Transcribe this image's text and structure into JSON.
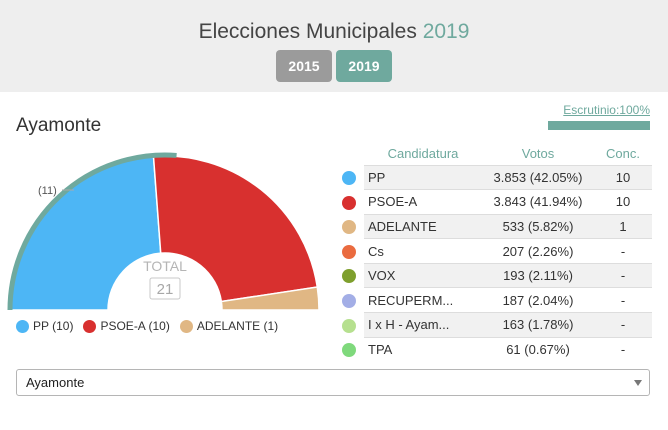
{
  "header": {
    "title_text": "Elecciones Municipales",
    "title_year": "2019",
    "years": [
      {
        "label": "2015",
        "active": false
      },
      {
        "label": "2019",
        "active": true
      }
    ]
  },
  "municipality": "Ayamonte",
  "scrutiny": {
    "label": "Escrutinio:100%",
    "fraction": 1.0
  },
  "chart_data": {
    "type": "pie",
    "shape": "semicircle",
    "total_label": "TOTAL",
    "total_seats": "21",
    "majority_label": "(11)",
    "slices": [
      {
        "name": "PP",
        "seats": 10,
        "color": "#4db6f5"
      },
      {
        "name": "PSOE-A",
        "seats": 10,
        "color": "#d8302f"
      },
      {
        "name": "ADELANTE",
        "seats": 1,
        "color": "#e0b784"
      }
    ]
  },
  "legend": [
    {
      "label": "PP (10)",
      "color": "#4db6f5"
    },
    {
      "label": "PSOE-A (10)",
      "color": "#d8302f"
    },
    {
      "label": "ADELANTE (1)",
      "color": "#e0b784"
    }
  ],
  "table": {
    "headers": {
      "party": "Candidatura",
      "votes": "Votos",
      "seats": "Conc."
    },
    "rows": [
      {
        "name": "PP",
        "votes": "3.853 (42.05%)",
        "seats": "10",
        "color": "#4db6f5"
      },
      {
        "name": "PSOE-A",
        "votes": "3.843 (41.94%)",
        "seats": "10",
        "color": "#d8302f"
      },
      {
        "name": "ADELANTE",
        "votes": "533 (5.82%)",
        "seats": "1",
        "color": "#e0b784"
      },
      {
        "name": "Cs",
        "votes": "207 (2.26%)",
        "seats": "-",
        "color": "#ea6b3f"
      },
      {
        "name": "VOX",
        "votes": "193 (2.11%)",
        "seats": "-",
        "color": "#7e9f2d"
      },
      {
        "name": "RECUPERM...",
        "votes": "187 (2.04%)",
        "seats": "-",
        "color": "#a3aee6"
      },
      {
        "name": "I x H - Ayam...",
        "votes": "163 (1.78%)",
        "seats": "-",
        "color": "#b6e08f"
      },
      {
        "name": "TPA",
        "votes": "61 (0.67%)",
        "seats": "-",
        "color": "#7fd97c"
      }
    ]
  },
  "select": {
    "value": "Ayamonte"
  }
}
